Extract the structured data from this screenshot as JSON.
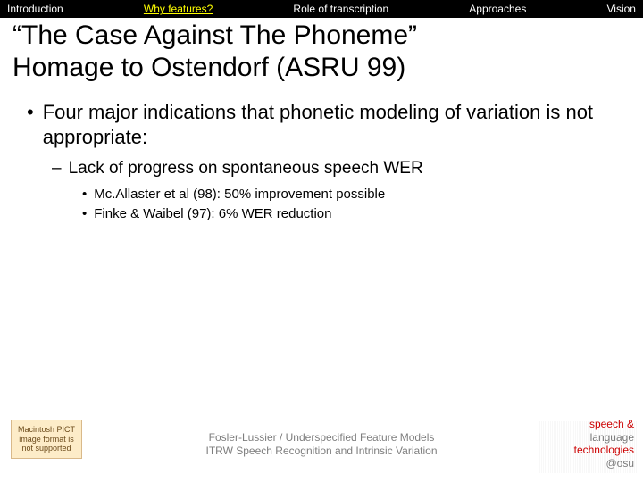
{
  "nav": {
    "items": [
      {
        "label": "Introduction",
        "active": false
      },
      {
        "label": "Why features?",
        "active": true
      },
      {
        "label": "Role of transcription",
        "active": false
      },
      {
        "label": "Approaches",
        "active": false
      },
      {
        "label": "Vision",
        "active": false
      }
    ]
  },
  "title": {
    "line1": "“The Case Against The Phoneme”",
    "line2": "Homage to Ostendorf (ASRU 99)"
  },
  "bullets": {
    "l1": "Four major indications that phonetic modeling of variation is not appropriate:",
    "l2": "Lack of progress on spontaneous speech WER",
    "l3a": "Mc.Allaster et al (98): 50% improvement possible",
    "l3b": "Finke & Waibel (97): 6% WER reduction"
  },
  "markers": {
    "l1": "•",
    "l2": "–",
    "l3": "•"
  },
  "footer": {
    "pict": "Macintosh PICT image format is not supported",
    "line1": "Fosler-Lussier / Underspecified Feature Models",
    "line2": "ITRW Speech Recognition and Intrinsic Variation"
  },
  "logo": {
    "l1": "speech &",
    "l2": "language",
    "l3": "technologies",
    "l4": "@osu"
  }
}
